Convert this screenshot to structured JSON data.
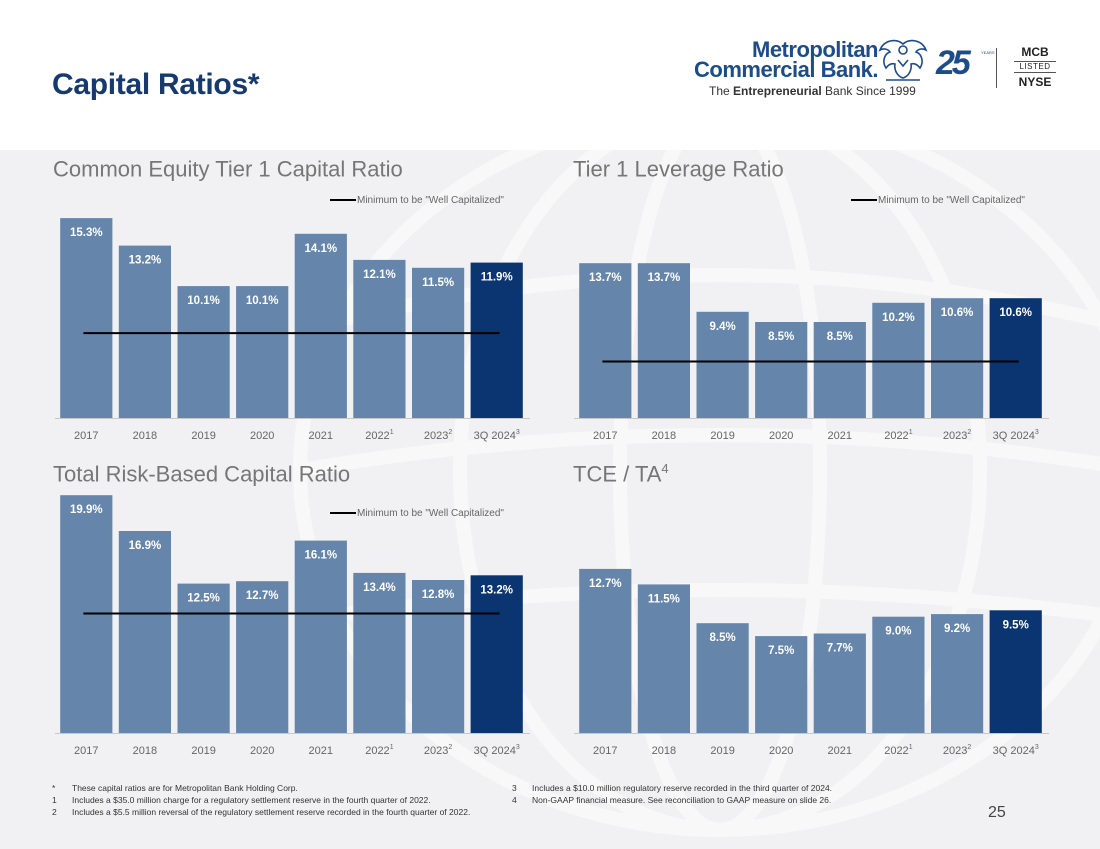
{
  "page": {
    "title": "Capital Ratios*",
    "page_number": "25"
  },
  "logo": {
    "name_line1": "Metropolitan",
    "name_line2": "Commercial Bank.",
    "tagline_prefix": "The ",
    "tagline_bold": "Entrepreneurial",
    "tagline_suffix": " Bank Since 1999",
    "anniversary": "25",
    "anniversary_word": "YEARS",
    "ticker": "MCB",
    "listed": "LISTED",
    "exchange": "NYSE"
  },
  "colors": {
    "bar": "#6585ab",
    "bar_highlight": "#0b3570",
    "title_blue": "#16396e",
    "background": "#f1f1f3"
  },
  "legend_label": "Minimum to be \"Well Capitalized\"",
  "chart_data": [
    {
      "type": "bar",
      "title": "Common Equity Tier 1 Capital Ratio",
      "title_sup": "",
      "categories": [
        "2017",
        "2018",
        "2019",
        "2020",
        "2021",
        "2022",
        "2023",
        "3Q 2024"
      ],
      "category_sups": [
        "",
        "",
        "",
        "",
        "",
        "1",
        "2",
        "3"
      ],
      "values": [
        15.3,
        13.2,
        10.1,
        10.1,
        14.1,
        12.1,
        11.5,
        11.9
      ],
      "labels": [
        "15.3%",
        "13.2%",
        "10.1%",
        "10.1%",
        "14.1%",
        "12.1%",
        "11.5%",
        "11.9%"
      ],
      "highlight_index": 7,
      "threshold": 6.5,
      "legend": "Minimum to be \"Well Capitalized\"",
      "ylim": [
        0,
        16
      ]
    },
    {
      "type": "bar",
      "title": "Tier 1 Leverage Ratio",
      "title_sup": "",
      "categories": [
        "2017",
        "2018",
        "2019",
        "2020",
        "2021",
        "2022",
        "2023",
        "3Q 2024"
      ],
      "category_sups": [
        "",
        "",
        "",
        "",
        "",
        "1",
        "2",
        "3"
      ],
      "values": [
        13.7,
        13.7,
        9.4,
        8.5,
        8.5,
        10.2,
        10.6,
        10.6
      ],
      "labels": [
        "13.7%",
        "13.7%",
        "9.4%",
        "8.5%",
        "8.5%",
        "10.2%",
        "10.6%",
        "10.6%"
      ],
      "highlight_index": 7,
      "threshold": 5.0,
      "legend": "Minimum to be \"Well Capitalized\"",
      "ylim": [
        0,
        18.5
      ]
    },
    {
      "type": "bar",
      "title": "Total Risk-Based Capital Ratio",
      "title_sup": "",
      "categories": [
        "2017",
        "2018",
        "2019",
        "2020",
        "2021",
        "2022",
        "2023",
        "3Q 2024"
      ],
      "category_sups": [
        "",
        "",
        "",
        "",
        "",
        "1",
        "2",
        "3"
      ],
      "values": [
        19.9,
        16.9,
        12.5,
        12.7,
        16.1,
        13.4,
        12.8,
        13.2
      ],
      "labels": [
        "19.9%",
        "16.9%",
        "12.5%",
        "12.7%",
        "16.1%",
        "13.4%",
        "12.8%",
        "13.2%"
      ],
      "highlight_index": 7,
      "threshold": 10.0,
      "legend": "Minimum to be \"Well Capitalized\"",
      "ylim": [
        0,
        20
      ]
    },
    {
      "type": "bar",
      "title": "TCE / TA",
      "title_sup": "4",
      "categories": [
        "2017",
        "2018",
        "2019",
        "2020",
        "2021",
        "2022",
        "2023",
        "3Q 2024"
      ],
      "category_sups": [
        "",
        "",
        "",
        "",
        "",
        "1",
        "2",
        "3"
      ],
      "values": [
        12.7,
        11.5,
        8.5,
        7.5,
        7.7,
        9.0,
        9.2,
        9.5
      ],
      "labels": [
        "12.7%",
        "11.5%",
        "8.5%",
        "7.5%",
        "7.7%",
        "9.0%",
        "9.2%",
        "9.5%"
      ],
      "highlight_index": 7,
      "threshold": null,
      "legend": "",
      "ylim": [
        0,
        18.5
      ]
    }
  ],
  "footnotes_left": [
    {
      "marker": "*",
      "text": "These capital ratios are for Metropolitan Bank Holding Corp."
    },
    {
      "marker": "1",
      "text": "Includes a $35.0 million charge for a regulatory settlement reserve in the fourth quarter of 2022."
    },
    {
      "marker": "2",
      "text": "Includes a $5.5 million reversal of the regulatory settlement reserve recorded in the fourth quarter of 2022."
    }
  ],
  "footnotes_right": [
    {
      "marker": "3",
      "text": "Includes a $10.0 million regulatory reserve recorded in the third quarter of 2024."
    },
    {
      "marker": "4",
      "text": "Non-GAAP financial measure. See reconciliation to GAAP measure on slide 26."
    }
  ]
}
